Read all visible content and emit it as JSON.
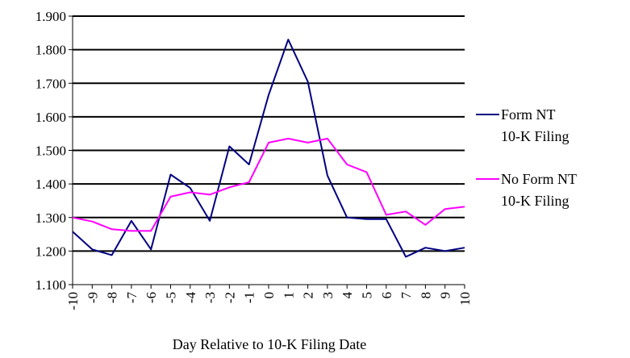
{
  "chart_data": {
    "type": "line",
    "title": "",
    "xlabel": "Day Relative to 10-K Filing Date",
    "ylabel": "",
    "x": [
      -10,
      -9,
      -8,
      -7,
      -6,
      -5,
      -4,
      -3,
      -2,
      -1,
      0,
      1,
      2,
      3,
      4,
      5,
      6,
      7,
      8,
      9,
      10
    ],
    "x_tick_labels": [
      "-10",
      "-9",
      "-8",
      "-7",
      "-6",
      "-5",
      "-4",
      "-3",
      "-2",
      "-1",
      "0",
      "1",
      "2",
      "3",
      "4",
      "5",
      "6",
      "7",
      "8",
      "9",
      "10"
    ],
    "y_tick_labels": [
      "1.100",
      "1.200",
      "1.300",
      "1.400",
      "1.500",
      "1.600",
      "1.700",
      "1.800",
      "1.900"
    ],
    "ylim": [
      1.1,
      1.9
    ],
    "grid": "horizontal",
    "legend": "right",
    "series": [
      {
        "name": "Form NT 10-K Filing",
        "legend_lines": [
          "Form NT",
          "10-K Filing"
        ],
        "color": "#000080",
        "values": [
          1.258,
          1.205,
          1.188,
          1.29,
          1.205,
          1.428,
          1.388,
          1.29,
          1.512,
          1.458,
          1.665,
          1.83,
          1.705,
          1.425,
          1.3,
          1.295,
          1.295,
          1.183,
          1.21,
          1.2,
          1.21
        ]
      },
      {
        "name": "No Form NT 10-K Filing",
        "legend_lines": [
          "No Form NT",
          "10-K Filing"
        ],
        "color": "#ff00ff",
        "values": [
          1.3,
          1.288,
          1.265,
          1.26,
          1.26,
          1.362,
          1.375,
          1.368,
          1.39,
          1.405,
          1.523,
          1.535,
          1.523,
          1.535,
          1.458,
          1.435,
          1.308,
          1.318,
          1.278,
          1.325,
          1.332
        ]
      }
    ]
  }
}
